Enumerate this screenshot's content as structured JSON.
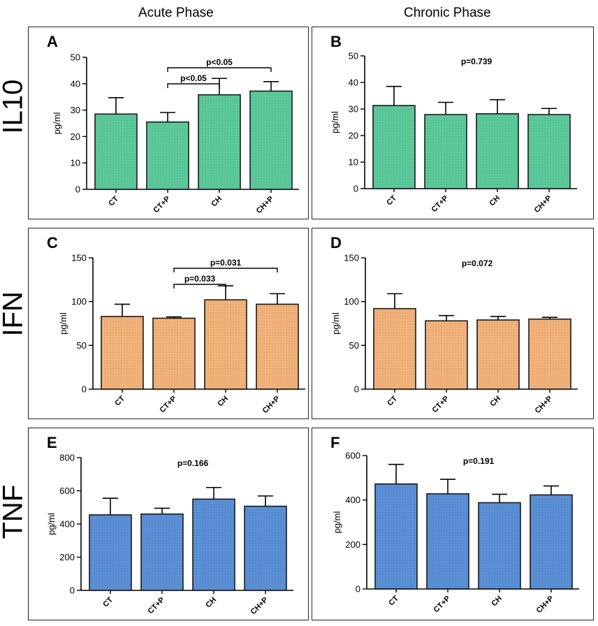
{
  "column_titles": [
    "Acute Phase",
    "Chronic Phase"
  ],
  "row_titles": [
    "IL10",
    "IFN",
    "TNF"
  ],
  "colors": {
    "green": "#5cc99b",
    "orange": "#f2b27a",
    "blue": "#5b8fd6",
    "edge": "#1a1a1a"
  },
  "chart_data": [
    {
      "panel": "A",
      "type": "bar",
      "fill": "green",
      "ylabel": "pg/ml",
      "categories": [
        "CT",
        "CT+P",
        "CH",
        "CH+P"
      ],
      "values": [
        28.5,
        25.5,
        35.8,
        37.2
      ],
      "errors": [
        6.2,
        3.6,
        6.2,
        3.6
      ],
      "ylim": [
        0,
        50
      ],
      "yticks": [
        0,
        10,
        20,
        30,
        40,
        50
      ],
      "ytick_labels": [
        "0",
        "10",
        "20",
        "30",
        "40",
        "50"
      ],
      "brackets": [
        {
          "from": 1,
          "to": 2,
          "label": "p<0.05",
          "level": 0
        },
        {
          "from": 1,
          "to": 3,
          "label": "p<0.05",
          "level": 1
        }
      ],
      "annotation": ""
    },
    {
      "panel": "B",
      "type": "bar",
      "fill": "green",
      "ylabel": "pg/ml",
      "categories": [
        "CT",
        "CT+P",
        "CH",
        "CH+P"
      ],
      "values": [
        31.3,
        27.9,
        28.2,
        27.9
      ],
      "errors": [
        7.2,
        4.6,
        5.3,
        2.3
      ],
      "ylim": [
        0,
        50
      ],
      "yticks": [
        0,
        10,
        20,
        30,
        40,
        50
      ],
      "ytick_labels": [
        "0",
        "10",
        "20",
        "30",
        "40",
        "50"
      ],
      "brackets": [],
      "annotation": "p=0.739"
    },
    {
      "panel": "C",
      "type": "bar",
      "fill": "orange",
      "ylabel": "pg/ml",
      "categories": [
        "CT",
        "CT+P",
        "CH",
        "CH+P"
      ],
      "values": [
        83,
        81,
        102,
        97
      ],
      "errors": [
        14,
        1.5,
        16,
        12
      ],
      "ylim": [
        0,
        150
      ],
      "yticks": [
        0,
        50,
        100,
        150
      ],
      "ytick_labels": [
        "0",
        "50",
        "100",
        "150"
      ],
      "brackets": [
        {
          "from": 1,
          "to": 2,
          "label": "p=0.033",
          "level": 0
        },
        {
          "from": 1,
          "to": 3,
          "label": "p=0.031",
          "level": 1
        }
      ],
      "annotation": ""
    },
    {
      "panel": "D",
      "type": "bar",
      "fill": "orange",
      "ylabel": "pg/ml",
      "categories": [
        "CT",
        "CT+P",
        "CH",
        "CH+P"
      ],
      "values": [
        92,
        78,
        79,
        80
      ],
      "errors": [
        17,
        6,
        4,
        2
      ],
      "ylim": [
        0,
        150
      ],
      "yticks": [
        0,
        50,
        100,
        150
      ],
      "ytick_labels": [
        "0",
        "50",
        "100",
        "150"
      ],
      "brackets": [],
      "annotation": "p=0.072"
    },
    {
      "panel": "E",
      "type": "bar",
      "fill": "blue",
      "ylabel": "pg/ml",
      "categories": [
        "CT",
        "CT+P",
        "CH",
        "CH+P"
      ],
      "values": [
        455,
        460,
        550,
        507
      ],
      "errors": [
        100,
        35,
        70,
        62
      ],
      "ylim": [
        0,
        800
      ],
      "yticks": [
        0,
        200,
        400,
        600,
        800
      ],
      "ytick_labels": [
        "0",
        "200",
        "400",
        "600",
        "800"
      ],
      "brackets": [],
      "annotation": "p=0.166"
    },
    {
      "panel": "F",
      "type": "bar",
      "fill": "blue",
      "ylabel": "pg/ml",
      "categories": [
        "CT",
        "CT+P",
        "CH",
        "CH+P"
      ],
      "values": [
        472,
        428,
        388,
        423
      ],
      "errors": [
        88,
        65,
        38,
        40
      ],
      "ylim": [
        0,
        600
      ],
      "yticks": [
        0,
        200,
        400,
        600
      ],
      "ytick_labels": [
        "0",
        "200",
        "400",
        "600"
      ],
      "brackets": [],
      "annotation": "p=0.191"
    }
  ]
}
